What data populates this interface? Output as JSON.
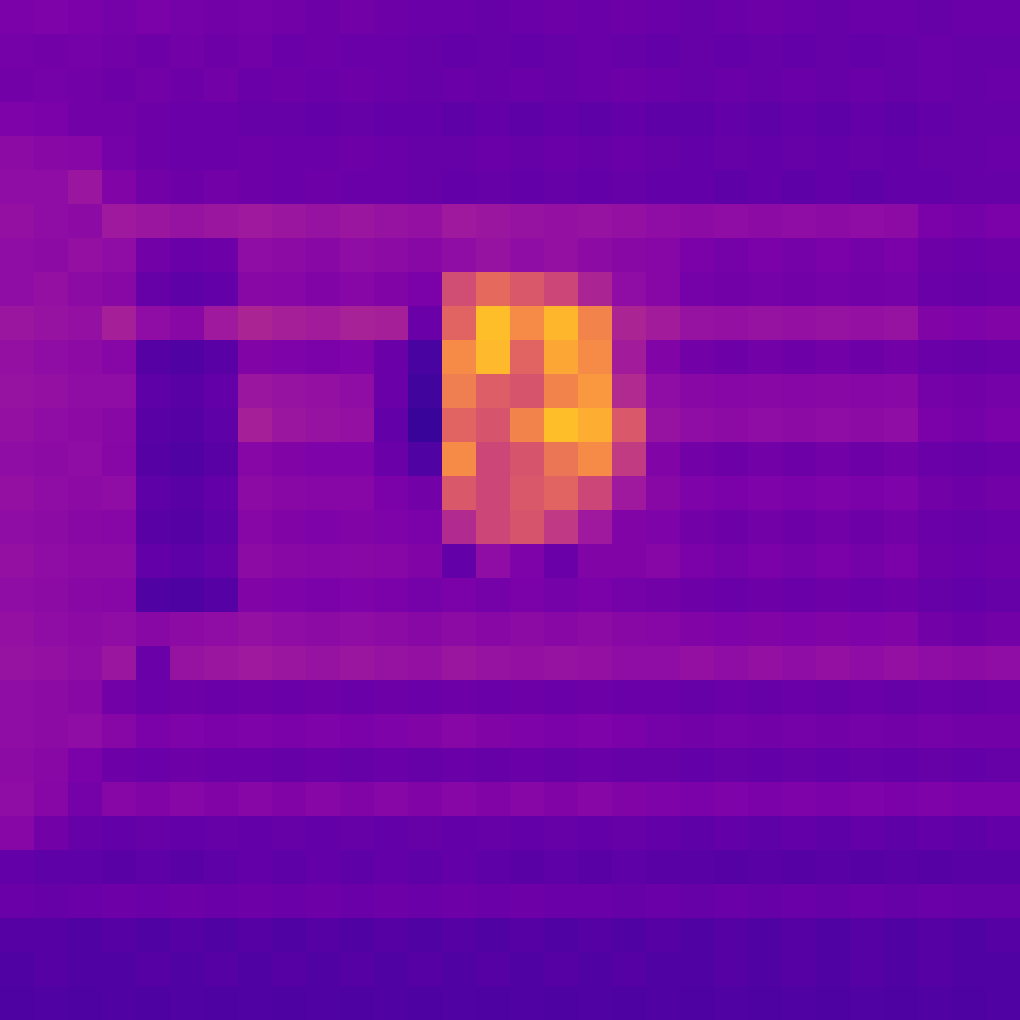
{
  "chart_data": {
    "type": "heatmap",
    "color": "plasma",
    "zlim": [
      0,
      1
    ],
    "tick_labels": false,
    "cells": [
      [
        0.24,
        0.25,
        0.24,
        0.23,
        0.24,
        0.23,
        0.22,
        0.23,
        0.22,
        0.21,
        0.22,
        0.21,
        0.2,
        0.2,
        0.19,
        0.2,
        0.21,
        0.2,
        0.21,
        0.2,
        0.19,
        0.2,
        0.21,
        0.2,
        0.19,
        0.2,
        0.2,
        0.19,
        0.2,
        0.2
      ],
      [
        0.23,
        0.22,
        0.23,
        0.22,
        0.21,
        0.22,
        0.21,
        0.22,
        0.2,
        0.21,
        0.2,
        0.2,
        0.19,
        0.18,
        0.19,
        0.18,
        0.19,
        0.2,
        0.19,
        0.18,
        0.19,
        0.18,
        0.19,
        0.18,
        0.19,
        0.18,
        0.19,
        0.2,
        0.19,
        0.19
      ],
      [
        0.22,
        0.23,
        0.22,
        0.21,
        0.22,
        0.21,
        0.22,
        0.2,
        0.21,
        0.2,
        0.21,
        0.2,
        0.19,
        0.2,
        0.19,
        0.2,
        0.19,
        0.2,
        0.21,
        0.2,
        0.19,
        0.2,
        0.19,
        0.2,
        0.19,
        0.2,
        0.19,
        0.2,
        0.19,
        0.2
      ],
      [
        0.25,
        0.24,
        0.22,
        0.22,
        0.21,
        0.2,
        0.2,
        0.19,
        0.19,
        0.18,
        0.19,
        0.18,
        0.18,
        0.17,
        0.18,
        0.17,
        0.18,
        0.17,
        0.18,
        0.17,
        0.17,
        0.18,
        0.17,
        0.18,
        0.17,
        0.18,
        0.17,
        0.18,
        0.19,
        0.19
      ],
      [
        0.29,
        0.28,
        0.27,
        0.23,
        0.21,
        0.2,
        0.2,
        0.21,
        0.2,
        0.2,
        0.21,
        0.2,
        0.19,
        0.19,
        0.2,
        0.19,
        0.2,
        0.19,
        0.2,
        0.19,
        0.18,
        0.19,
        0.18,
        0.19,
        0.18,
        0.19,
        0.18,
        0.19,
        0.19,
        0.2
      ],
      [
        0.3,
        0.3,
        0.33,
        0.26,
        0.22,
        0.21,
        0.22,
        0.21,
        0.2,
        0.21,
        0.2,
        0.2,
        0.19,
        0.18,
        0.19,
        0.18,
        0.19,
        0.18,
        0.19,
        0.18,
        0.18,
        0.17,
        0.18,
        0.17,
        0.18,
        0.17,
        0.18,
        0.18,
        0.19,
        0.19
      ],
      [
        0.31,
        0.3,
        0.29,
        0.34,
        0.33,
        0.32,
        0.33,
        0.34,
        0.33,
        0.32,
        0.33,
        0.32,
        0.31,
        0.34,
        0.33,
        0.32,
        0.31,
        0.32,
        0.31,
        0.3,
        0.29,
        0.3,
        0.29,
        0.3,
        0.29,
        0.3,
        0.29,
        0.24,
        0.23,
        0.24
      ],
      [
        0.3,
        0.29,
        0.31,
        0.3,
        0.22,
        0.2,
        0.21,
        0.3,
        0.29,
        0.28,
        0.3,
        0.29,
        0.28,
        0.3,
        0.32,
        0.3,
        0.31,
        0.29,
        0.28,
        0.27,
        0.24,
        0.23,
        0.24,
        0.23,
        0.24,
        0.23,
        0.24,
        0.21,
        0.2,
        0.21
      ],
      [
        0.3,
        0.31,
        0.29,
        0.28,
        0.19,
        0.17,
        0.18,
        0.28,
        0.27,
        0.26,
        0.27,
        0.26,
        0.24,
        0.52,
        0.62,
        0.56,
        0.5,
        0.38,
        0.3,
        0.27,
        0.23,
        0.22,
        0.23,
        0.22,
        0.23,
        0.22,
        0.23,
        0.2,
        0.19,
        0.2
      ],
      [
        0.33,
        0.32,
        0.31,
        0.36,
        0.3,
        0.28,
        0.34,
        0.38,
        0.36,
        0.35,
        0.37,
        0.36,
        0.2,
        0.6,
        0.86,
        0.72,
        0.84,
        0.7,
        0.38,
        0.35,
        0.32,
        0.31,
        0.32,
        0.31,
        0.32,
        0.31,
        0.32,
        0.26,
        0.25,
        0.26
      ],
      [
        0.31,
        0.3,
        0.29,
        0.27,
        0.15,
        0.14,
        0.16,
        0.26,
        0.25,
        0.24,
        0.25,
        0.2,
        0.12,
        0.72,
        0.85,
        0.6,
        0.8,
        0.72,
        0.35,
        0.26,
        0.22,
        0.21,
        0.22,
        0.21,
        0.22,
        0.21,
        0.22,
        0.2,
        0.19,
        0.2
      ],
      [
        0.32,
        0.31,
        0.3,
        0.3,
        0.17,
        0.16,
        0.18,
        0.33,
        0.32,
        0.31,
        0.3,
        0.2,
        0.1,
        0.68,
        0.58,
        0.55,
        0.7,
        0.76,
        0.4,
        0.3,
        0.28,
        0.27,
        0.28,
        0.27,
        0.28,
        0.27,
        0.28,
        0.23,
        0.22,
        0.23
      ],
      [
        0.31,
        0.3,
        0.29,
        0.28,
        0.16,
        0.15,
        0.17,
        0.36,
        0.33,
        0.32,
        0.31,
        0.18,
        0.08,
        0.6,
        0.55,
        0.7,
        0.86,
        0.82,
        0.56,
        0.32,
        0.3,
        0.29,
        0.3,
        0.29,
        0.3,
        0.29,
        0.3,
        0.24,
        0.23,
        0.24
      ],
      [
        0.3,
        0.29,
        0.3,
        0.27,
        0.15,
        0.14,
        0.16,
        0.27,
        0.26,
        0.25,
        0.25,
        0.2,
        0.14,
        0.72,
        0.5,
        0.55,
        0.66,
        0.72,
        0.46,
        0.26,
        0.22,
        0.21,
        0.22,
        0.21,
        0.22,
        0.21,
        0.22,
        0.2,
        0.19,
        0.2
      ],
      [
        0.31,
        0.3,
        0.29,
        0.3,
        0.17,
        0.16,
        0.18,
        0.29,
        0.28,
        0.27,
        0.27,
        0.24,
        0.22,
        0.56,
        0.5,
        0.56,
        0.6,
        0.5,
        0.34,
        0.28,
        0.25,
        0.24,
        0.25,
        0.24,
        0.25,
        0.24,
        0.25,
        0.22,
        0.21,
        0.22
      ],
      [
        0.3,
        0.29,
        0.28,
        0.27,
        0.16,
        0.15,
        0.17,
        0.27,
        0.26,
        0.25,
        0.26,
        0.25,
        0.24,
        0.4,
        0.5,
        0.55,
        0.45,
        0.34,
        0.26,
        0.25,
        0.22,
        0.21,
        0.22,
        0.21,
        0.22,
        0.21,
        0.22,
        0.2,
        0.19,
        0.2
      ],
      [
        0.31,
        0.3,
        0.29,
        0.29,
        0.18,
        0.17,
        0.19,
        0.29,
        0.28,
        0.27,
        0.28,
        0.27,
        0.26,
        0.18,
        0.3,
        0.25,
        0.2,
        0.26,
        0.26,
        0.27,
        0.24,
        0.23,
        0.24,
        0.23,
        0.24,
        0.23,
        0.24,
        0.21,
        0.2,
        0.21
      ],
      [
        0.3,
        0.29,
        0.28,
        0.27,
        0.14,
        0.13,
        0.15,
        0.26,
        0.25,
        0.24,
        0.25,
        0.24,
        0.23,
        0.24,
        0.23,
        0.24,
        0.23,
        0.24,
        0.23,
        0.22,
        0.21,
        0.2,
        0.21,
        0.2,
        0.21,
        0.2,
        0.21,
        0.19,
        0.18,
        0.19
      ],
      [
        0.31,
        0.3,
        0.29,
        0.3,
        0.28,
        0.29,
        0.3,
        0.31,
        0.3,
        0.29,
        0.3,
        0.29,
        0.28,
        0.29,
        0.28,
        0.29,
        0.28,
        0.29,
        0.28,
        0.27,
        0.26,
        0.25,
        0.26,
        0.25,
        0.26,
        0.25,
        0.26,
        0.22,
        0.21,
        0.22
      ],
      [
        0.32,
        0.31,
        0.3,
        0.33,
        0.2,
        0.32,
        0.33,
        0.34,
        0.33,
        0.32,
        0.33,
        0.32,
        0.31,
        0.33,
        0.32,
        0.31,
        0.32,
        0.31,
        0.3,
        0.3,
        0.31,
        0.3,
        0.31,
        0.3,
        0.31,
        0.3,
        0.31,
        0.3,
        0.29,
        0.3
      ],
      [
        0.3,
        0.29,
        0.28,
        0.22,
        0.2,
        0.21,
        0.2,
        0.21,
        0.2,
        0.21,
        0.2,
        0.21,
        0.2,
        0.21,
        0.2,
        0.21,
        0.2,
        0.21,
        0.2,
        0.2,
        0.19,
        0.2,
        0.19,
        0.2,
        0.19,
        0.2,
        0.19,
        0.2,
        0.19,
        0.2
      ],
      [
        0.3,
        0.29,
        0.3,
        0.27,
        0.24,
        0.25,
        0.24,
        0.25,
        0.24,
        0.25,
        0.24,
        0.25,
        0.26,
        0.27,
        0.26,
        0.25,
        0.24,
        0.25,
        0.24,
        0.23,
        0.22,
        0.23,
        0.22,
        0.23,
        0.22,
        0.23,
        0.22,
        0.23,
        0.22,
        0.22
      ],
      [
        0.29,
        0.28,
        0.24,
        0.21,
        0.2,
        0.21,
        0.2,
        0.2,
        0.19,
        0.2,
        0.19,
        0.2,
        0.19,
        0.2,
        0.19,
        0.2,
        0.19,
        0.2,
        0.19,
        0.19,
        0.18,
        0.19,
        0.18,
        0.19,
        0.18,
        0.19,
        0.18,
        0.19,
        0.18,
        0.19
      ],
      [
        0.3,
        0.27,
        0.23,
        0.27,
        0.26,
        0.27,
        0.26,
        0.27,
        0.26,
        0.27,
        0.26,
        0.27,
        0.26,
        0.27,
        0.26,
        0.27,
        0.26,
        0.27,
        0.26,
        0.25,
        0.24,
        0.25,
        0.24,
        0.25,
        0.24,
        0.25,
        0.24,
        0.25,
        0.24,
        0.24
      ],
      [
        0.27,
        0.22,
        0.19,
        0.18,
        0.19,
        0.18,
        0.19,
        0.18,
        0.19,
        0.18,
        0.19,
        0.18,
        0.19,
        0.18,
        0.19,
        0.18,
        0.19,
        0.18,
        0.19,
        0.18,
        0.17,
        0.18,
        0.17,
        0.18,
        0.17,
        0.18,
        0.17,
        0.18,
        0.17,
        0.18
      ],
      [
        0.18,
        0.17,
        0.17,
        0.16,
        0.17,
        0.16,
        0.17,
        0.18,
        0.17,
        0.18,
        0.17,
        0.18,
        0.17,
        0.18,
        0.17,
        0.16,
        0.17,
        0.16,
        0.17,
        0.16,
        0.16,
        0.15,
        0.16,
        0.15,
        0.16,
        0.15,
        0.16,
        0.15,
        0.16,
        0.16
      ],
      [
        0.2,
        0.19,
        0.2,
        0.21,
        0.2,
        0.21,
        0.2,
        0.21,
        0.2,
        0.21,
        0.2,
        0.21,
        0.2,
        0.21,
        0.2,
        0.21,
        0.2,
        0.2,
        0.19,
        0.2,
        0.19,
        0.2,
        0.19,
        0.2,
        0.19,
        0.2,
        0.19,
        0.2,
        0.19,
        0.19
      ],
      [
        0.15,
        0.15,
        0.14,
        0.15,
        0.14,
        0.15,
        0.14,
        0.15,
        0.14,
        0.15,
        0.14,
        0.15,
        0.14,
        0.15,
        0.14,
        0.15,
        0.14,
        0.15,
        0.14,
        0.15,
        0.14,
        0.15,
        0.14,
        0.15,
        0.14,
        0.15,
        0.14,
        0.15,
        0.14,
        0.15
      ],
      [
        0.14,
        0.15,
        0.14,
        0.14,
        0.15,
        0.14,
        0.15,
        0.14,
        0.15,
        0.14,
        0.15,
        0.14,
        0.15,
        0.14,
        0.15,
        0.14,
        0.15,
        0.14,
        0.15,
        0.14,
        0.14,
        0.15,
        0.14,
        0.15,
        0.14,
        0.15,
        0.14,
        0.15,
        0.14,
        0.14
      ],
      [
        0.13,
        0.14,
        0.13,
        0.14,
        0.13,
        0.14,
        0.13,
        0.14,
        0.13,
        0.14,
        0.13,
        0.14,
        0.13,
        0.14,
        0.13,
        0.14,
        0.13,
        0.14,
        0.13,
        0.14,
        0.13,
        0.14,
        0.13,
        0.14,
        0.13,
        0.14,
        0.13,
        0.14,
        0.13,
        0.14
      ]
    ]
  }
}
